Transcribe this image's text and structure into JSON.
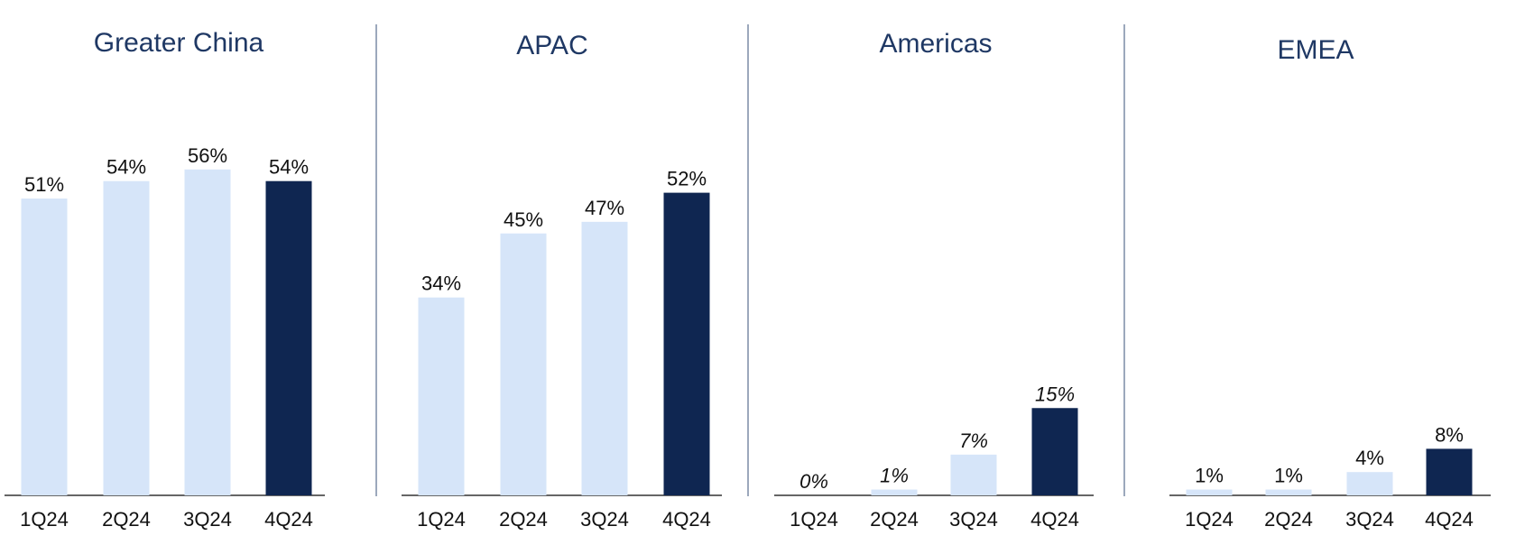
{
  "colors": {
    "historical": "#d6e5f9",
    "latest": "#0f2651",
    "title": "#1f3864"
  },
  "chart_data": [
    {
      "type": "bar",
      "title": "Greater China",
      "categories": [
        "1Q24",
        "2Q24",
        "3Q24",
        "4Q24"
      ],
      "values": [
        51,
        54,
        56,
        54
      ],
      "labels": [
        "51%",
        "54%",
        "56%",
        "54%"
      ],
      "italic_labels": false,
      "ylim": [
        0,
        60
      ]
    },
    {
      "type": "bar",
      "title": "APAC",
      "categories": [
        "1Q24",
        "2Q24",
        "3Q24",
        "4Q24"
      ],
      "values": [
        34,
        45,
        47,
        52
      ],
      "labels": [
        "34%",
        "45%",
        "47%",
        "52%"
      ],
      "italic_labels": false,
      "ylim": [
        0,
        60
      ]
    },
    {
      "type": "bar",
      "title": "Americas",
      "categories": [
        "1Q24",
        "2Q24",
        "3Q24",
        "4Q24"
      ],
      "values": [
        0,
        1,
        7,
        15
      ],
      "labels": [
        "0%",
        "1%",
        "7%",
        "15%"
      ],
      "italic_labels": true,
      "ylim": [
        0,
        60
      ]
    },
    {
      "type": "bar",
      "title": "EMEA",
      "categories": [
        "1Q24",
        "2Q24",
        "3Q24",
        "4Q24"
      ],
      "values": [
        1,
        1,
        4,
        8
      ],
      "labels": [
        "1%",
        "1%",
        "4%",
        "8%"
      ],
      "italic_labels": false,
      "ylim": [
        0,
        60
      ]
    }
  ]
}
